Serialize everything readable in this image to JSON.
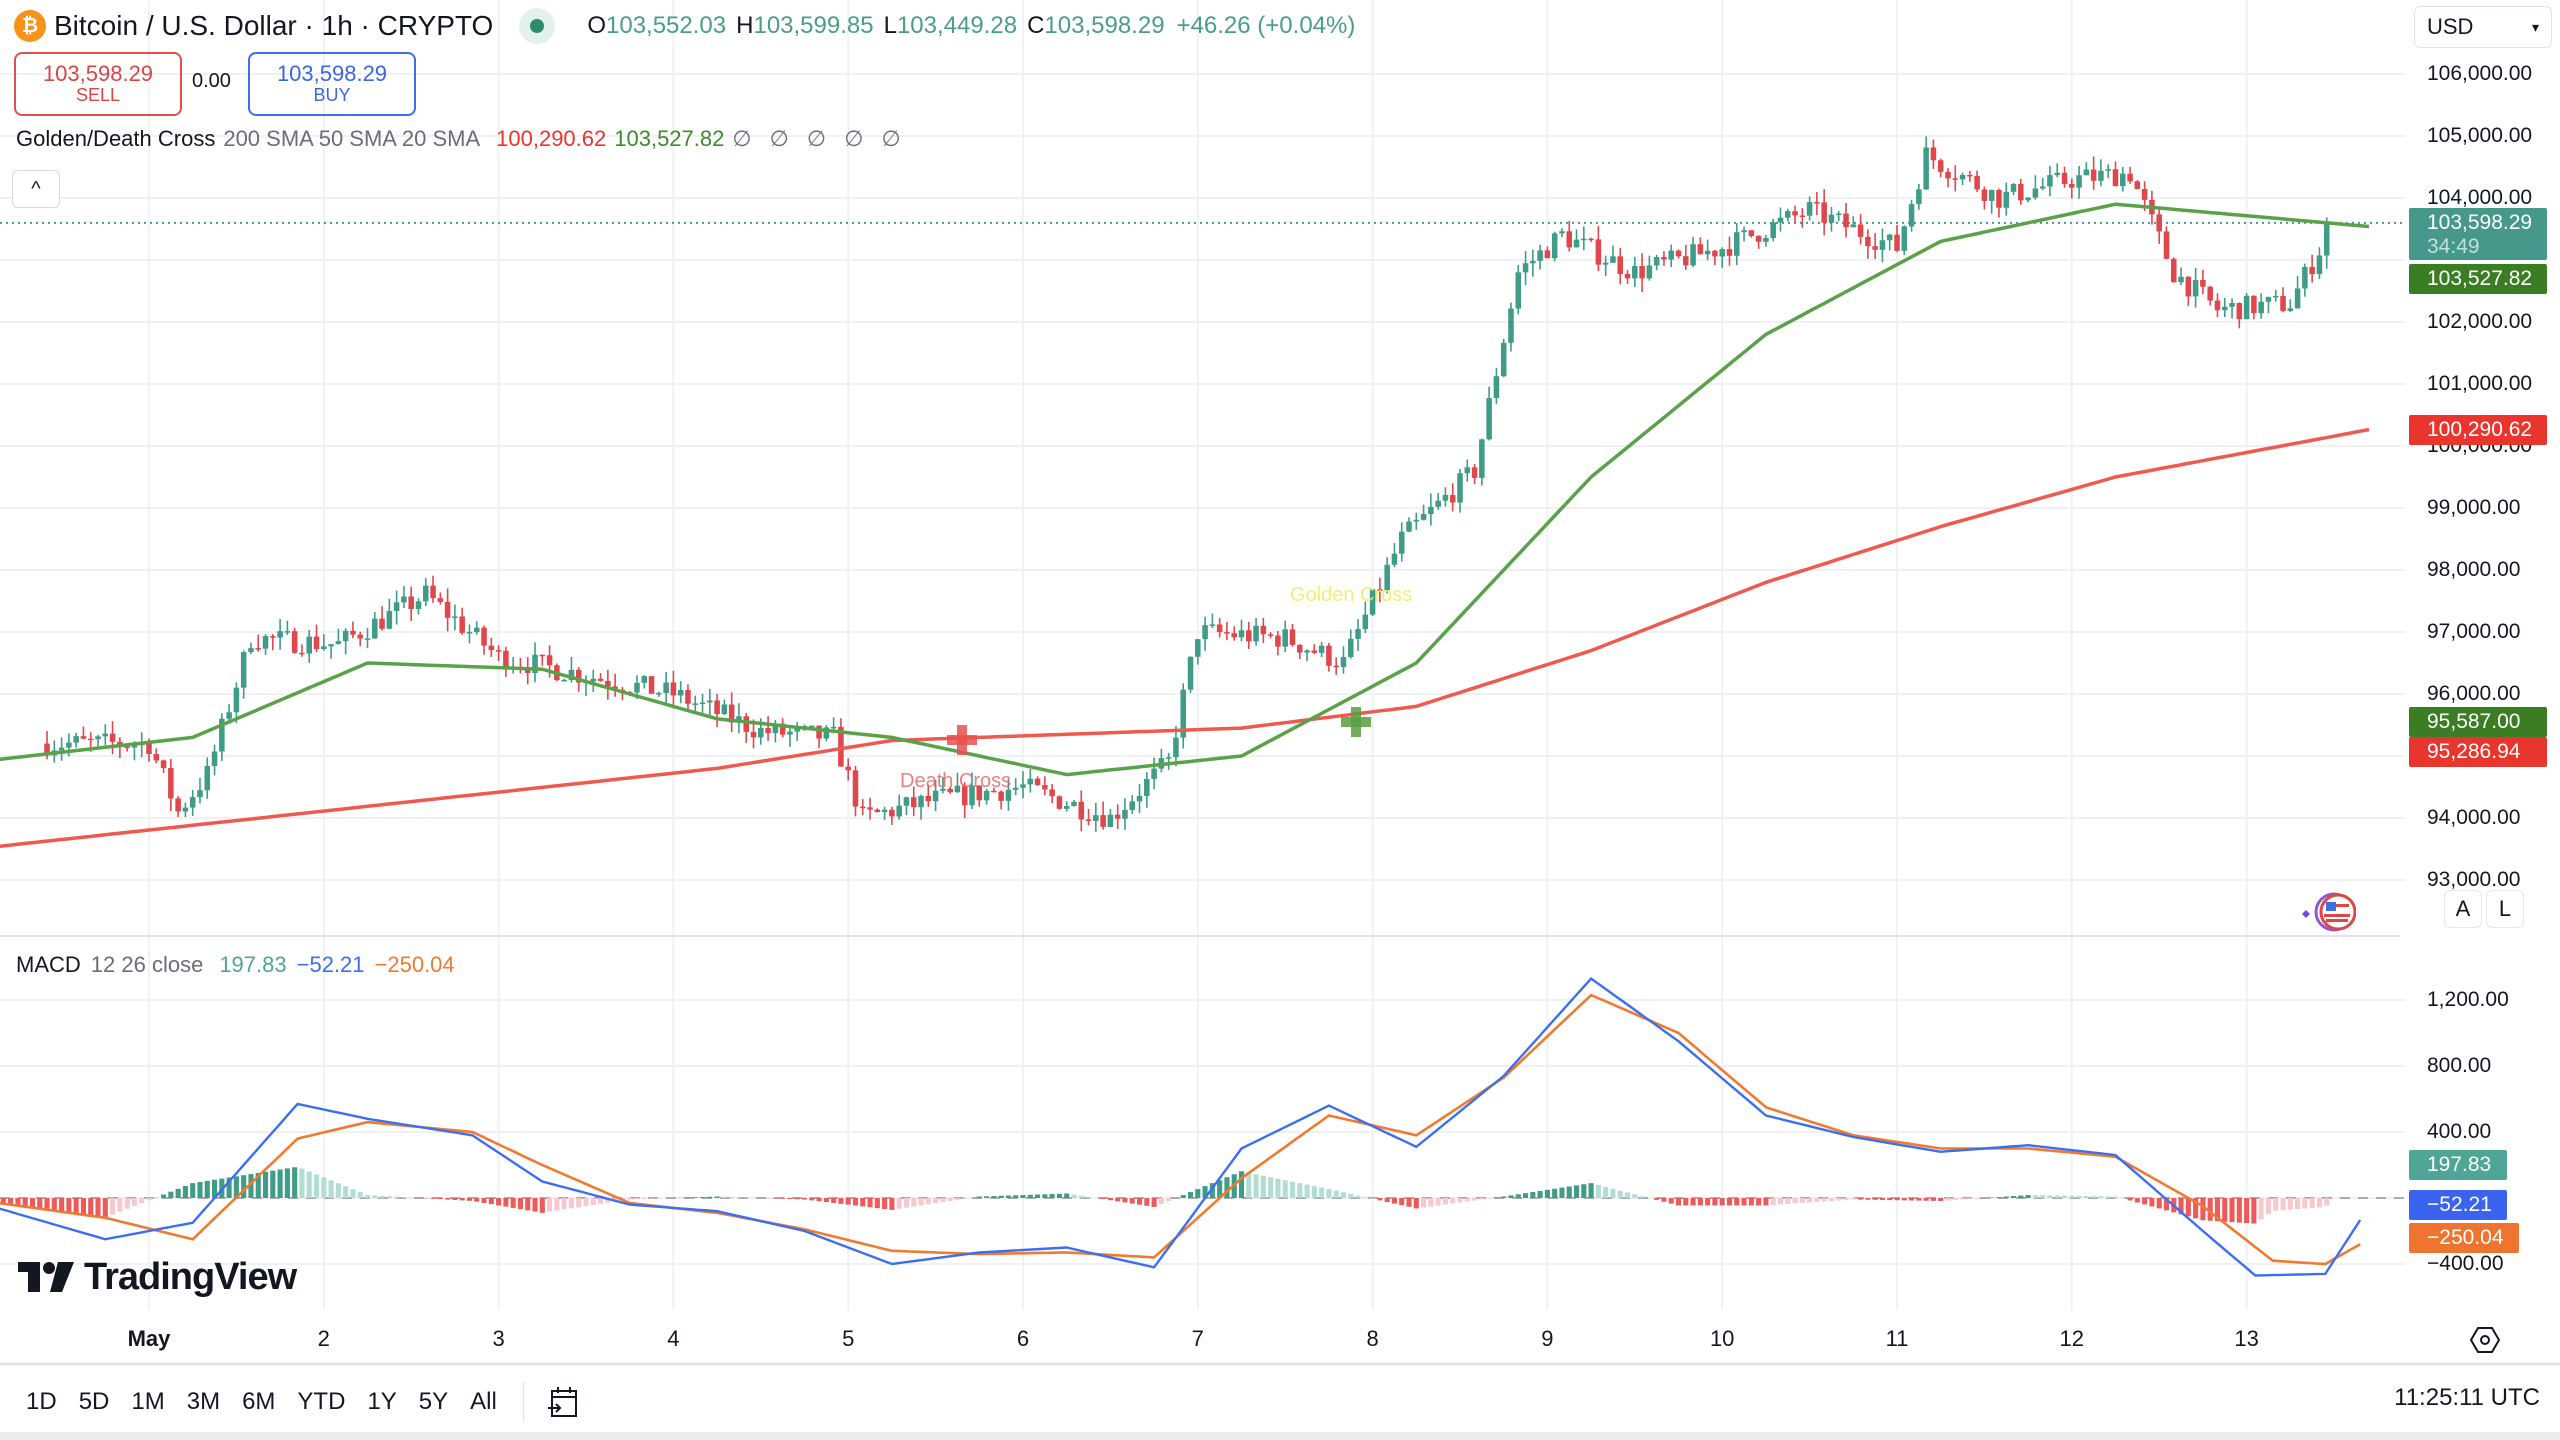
{
  "header": {
    "symbol_icon": "bitcoin-icon",
    "title": "Bitcoin / U.S. Dollar · 1h · CRYPTO",
    "market_status": "market-open-dot",
    "ohlc": {
      "O_label": "O",
      "O": "103,552.03",
      "H_label": "H",
      "H": "103,599.85",
      "L_label": "L",
      "L": "103,449.28",
      "C_label": "C",
      "C": "103,598.29",
      "change": "+46.26 (+0.04%)"
    },
    "currency": "USD"
  },
  "trade": {
    "sell_price": "103,598.29",
    "sell_label": "SELL",
    "spread": "0.00",
    "buy_price": "103,598.29",
    "buy_label": "BUY"
  },
  "indicator": {
    "name": "Golden/Death Cross",
    "params": "200 SMA 50 SMA 20 SMA",
    "value_200": "100,290.62",
    "value_50": "103,527.82",
    "empty_values": "∅ ∅ ∅ ∅ ∅",
    "collapse_icon": "^"
  },
  "price_axis": {
    "ticks": [
      "106,000.00",
      "105,000.00",
      "104,000.00",
      "102,000.00",
      "101,000.00",
      "100,000.00",
      "99,000.00",
      "98,000.00",
      "97,000.00",
      "96,000.00",
      "94,000.00",
      "93,000.00"
    ],
    "tick_values": [
      106000,
      105000,
      104000,
      102000,
      101000,
      100000,
      99000,
      98000,
      97000,
      96000,
      94000,
      93000
    ],
    "last_price": "103,598.29",
    "countdown": "34:49",
    "sma50_tag": "103,527.82",
    "sma200_tag": "100,290.62",
    "cross_golden_tag": "95,587.00",
    "cross_death_tag": "95,286.94",
    "auto_button": "A",
    "log_button": "L"
  },
  "markers": {
    "golden_cross": "Golden Cross",
    "death_cross": "Death Cross"
  },
  "macd": {
    "name": "MACD",
    "params": "12 26 close",
    "histogram": "197.83",
    "macd": "−52.21",
    "signal": "−250.04",
    "ticks": [
      "1,200.00",
      "800.00",
      "400.00",
      "−400.00"
    ],
    "tick_values": [
      1200,
      800,
      400,
      -400
    ]
  },
  "time_axis": {
    "labels": [
      "May",
      "2",
      "3",
      "4",
      "5",
      "6",
      "7",
      "8",
      "9",
      "10",
      "11",
      "12",
      "13"
    ]
  },
  "range_bar": {
    "buttons": [
      "1D",
      "5D",
      "1M",
      "3M",
      "6M",
      "YTD",
      "1Y",
      "5Y",
      "All"
    ],
    "goto_date_icon": "calendar-goto-icon"
  },
  "clock": "11:25:11 UTC",
  "branding": "TradingView",
  "colors": {
    "up": "#3f9c86",
    "down": "#e0474c",
    "sma50": "#5aa24a",
    "sma200": "#ee5a50",
    "macd_line": "#3b6ff0",
    "signal_line": "#f07a30",
    "last_price_bg": "#46988a",
    "sma50_bg": "#3a7d22",
    "sma200_bg": "#e8352e"
  },
  "chart_data": {
    "type": "candlestick",
    "title": "Bitcoin / U.S. Dollar · 1h",
    "x_labels": [
      "May",
      "2",
      "3",
      "4",
      "5",
      "6",
      "7",
      "8",
      "9",
      "10",
      "11",
      "12",
      "13"
    ],
    "ylim": [
      93000,
      106000
    ],
    "close_path_daily_approx": [
      {
        "x": "May 1 00:00",
        "p": 95200
      },
      {
        "x": "May 1 04:00",
        "p": 94100
      },
      {
        "x": "May 1 08:00",
        "p": 94700
      },
      {
        "x": "May 1 14:00",
        "p": 96900
      },
      {
        "x": "May 2 02:00",
        "p": 96800
      },
      {
        "x": "May 2 14:00",
        "p": 97600
      },
      {
        "x": "May 3 00:00",
        "p": 96600
      },
      {
        "x": "May 3 12:00",
        "p": 96300
      },
      {
        "x": "May 4 00:00",
        "p": 96000
      },
      {
        "x": "May 4 12:00",
        "p": 95400
      },
      {
        "x": "May 4 22:00",
        "p": 95300
      },
      {
        "x": "May 5 02:00",
        "p": 94000
      },
      {
        "x": "May 5 12:00",
        "p": 94300
      },
      {
        "x": "May 6 00:00",
        "p": 94500
      },
      {
        "x": "May 6 12:00",
        "p": 94000
      },
      {
        "x": "May 6 20:00",
        "p": 94900
      },
      {
        "x": "May 7 00:00",
        "p": 97000
      },
      {
        "x": "May 7 12:00",
        "p": 96900
      },
      {
        "x": "May 7 20:00",
        "p": 96500
      },
      {
        "x": "May 8 04:00",
        "p": 98500
      },
      {
        "x": "May 8 14:00",
        "p": 99600
      },
      {
        "x": "May 8 20:00",
        "p": 102800
      },
      {
        "x": "May 9 02:00",
        "p": 103400
      },
      {
        "x": "May 9 12:00",
        "p": 102800
      },
      {
        "x": "May 10 00:00",
        "p": 103200
      },
      {
        "x": "May 10 12:00",
        "p": 103800
      },
      {
        "x": "May 11 00:00",
        "p": 103200
      },
      {
        "x": "May 11 04:00",
        "p": 104700
      },
      {
        "x": "May 11 14:00",
        "p": 104000
      },
      {
        "x": "May 12 00:00",
        "p": 104300
      },
      {
        "x": "May 12 08:00",
        "p": 104400
      },
      {
        "x": "May 12 14:00",
        "p": 102800
      },
      {
        "x": "May 12 20:00",
        "p": 102200
      },
      {
        "x": "May 13 06:00",
        "p": 102300
      },
      {
        "x": "May 13 12:00",
        "p": 103598.29
      }
    ],
    "series": [
      {
        "name": "200 SMA",
        "last": 100290.62,
        "points": [
          [
            0,
            93500
          ],
          [
            4,
            94800
          ],
          [
            5,
            95250
          ],
          [
            7,
            95450
          ],
          [
            8,
            95800
          ],
          [
            9,
            96700
          ],
          [
            10,
            97800
          ],
          [
            11,
            98700
          ],
          [
            12,
            99500
          ],
          [
            13.5,
            100290.62
          ]
        ]
      },
      {
        "name": "50 SMA",
        "last": 103527.82,
        "points": [
          [
            0,
            94900
          ],
          [
            1,
            95300
          ],
          [
            2,
            96500
          ],
          [
            3,
            96400
          ],
          [
            4,
            95600
          ],
          [
            5,
            95300
          ],
          [
            6,
            94700
          ],
          [
            7,
            95000
          ],
          [
            8,
            96500
          ],
          [
            9,
            99500
          ],
          [
            10,
            101800
          ],
          [
            11,
            103300
          ],
          [
            12,
            103900
          ],
          [
            13.5,
            103527.82
          ]
        ]
      }
    ],
    "annotations": [
      {
        "type": "death_cross",
        "x": "May 5 ~16:00",
        "price": 95286.94,
        "label": "Death Cross"
      },
      {
        "type": "golden_cross",
        "x": "May 7 ~22:00",
        "price": 95587.0,
        "label": "Golden Cross"
      }
    ],
    "macd": {
      "ylim": [
        -500,
        1350
      ],
      "last": {
        "histogram": 197.83,
        "macd": -52.21,
        "signal": -250.04
      },
      "macd_points": [
        [
          0,
          -20
        ],
        [
          0.5,
          -250
        ],
        [
          1,
          -150
        ],
        [
          1.6,
          570
        ],
        [
          2,
          480
        ],
        [
          2.6,
          380
        ],
        [
          3,
          100
        ],
        [
          3.5,
          -40
        ],
        [
          4,
          -80
        ],
        [
          4.5,
          -200
        ],
        [
          5,
          -400
        ],
        [
          5.5,
          -330
        ],
        [
          6,
          -300
        ],
        [
          6.5,
          -420
        ],
        [
          7,
          300
        ],
        [
          7.5,
          560
        ],
        [
          8,
          310
        ],
        [
          8.5,
          740
        ],
        [
          9,
          1330
        ],
        [
          9.5,
          950
        ],
        [
          10,
          500
        ],
        [
          10.5,
          370
        ],
        [
          11,
          280
        ],
        [
          11.5,
          320
        ],
        [
          12,
          260
        ],
        [
          12.5,
          -200
        ],
        [
          12.8,
          -470
        ],
        [
          13.2,
          -460
        ],
        [
          13.45,
          -52
        ]
      ],
      "signal_points": [
        [
          0,
          -10
        ],
        [
          0.5,
          -120
        ],
        [
          1,
          -250
        ],
        [
          1.6,
          360
        ],
        [
          2,
          460
        ],
        [
          2.6,
          400
        ],
        [
          3,
          200
        ],
        [
          3.5,
          -30
        ],
        [
          4,
          -90
        ],
        [
          4.5,
          -190
        ],
        [
          5,
          -320
        ],
        [
          5.5,
          -340
        ],
        [
          6,
          -330
        ],
        [
          6.5,
          -360
        ],
        [
          7,
          120
        ],
        [
          7.5,
          500
        ],
        [
          8,
          380
        ],
        [
          8.5,
          730
        ],
        [
          9,
          1230
        ],
        [
          9.5,
          1000
        ],
        [
          10,
          550
        ],
        [
          10.5,
          380
        ],
        [
          11,
          300
        ],
        [
          11.5,
          300
        ],
        [
          12,
          250
        ],
        [
          12.5,
          -50
        ],
        [
          12.9,
          -380
        ],
        [
          13.2,
          -400
        ],
        [
          13.45,
          -250
        ]
      ]
    }
  }
}
